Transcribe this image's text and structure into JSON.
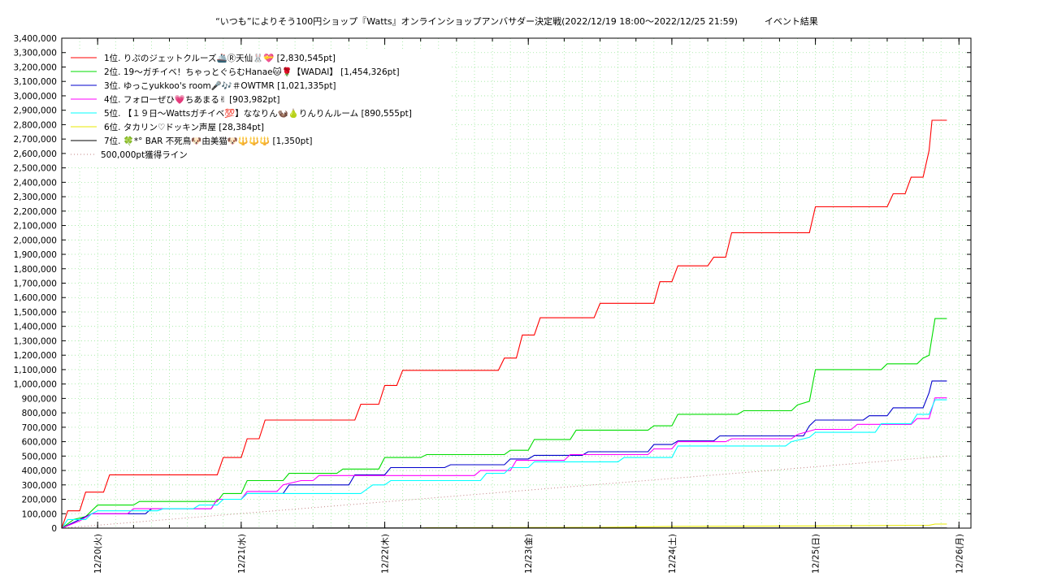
{
  "chart_data": {
    "type": "line",
    "title": "“いつも”によりそう100円ショップ『Watts』オンラインショップアンバサダー決定戦(2022/12/19 18:00～2022/12/25 21:59)　　　イベント結果",
    "ylim": [
      0,
      3400000
    ],
    "yticks": [
      "0",
      "100,000",
      "200,000",
      "300,000",
      "400,000",
      "500,000",
      "600,000",
      "700,000",
      "800,000",
      "900,000",
      "1,000,000",
      "1,100,000",
      "1,200,000",
      "1,300,000",
      "1,400,000",
      "1,500,000",
      "1,600,000",
      "1,700,000",
      "1,800,000",
      "1,900,000",
      "2,000,000",
      "2,100,000",
      "2,200,000",
      "2,300,000",
      "2,400,000",
      "2,500,000",
      "2,600,000",
      "2,700,000",
      "2,800,000",
      "2,900,000",
      "3,000,000",
      "3,100,000",
      "3,200,000",
      "3,300,000",
      "3,400,000"
    ],
    "xlim": [
      "2022/12/19 18:00",
      "2022/12/26 02:00"
    ],
    "xticks": [
      {
        "t": "2022/12/20 00:00",
        "label": "12/20(火)"
      },
      {
        "t": "2022/12/21 00:00",
        "label": "12/21(水)"
      },
      {
        "t": "2022/12/22 00:00",
        "label": "12/22(木)"
      },
      {
        "t": "2022/12/23 00:00",
        "label": "12/23(金)"
      },
      {
        "t": "2022/12/24 00:00",
        "label": "12/24(土)"
      },
      {
        "t": "2022/12/25 00:00",
        "label": "12/25(日)"
      },
      {
        "t": "2022/12/26 00:00",
        "label": "12/26(月)"
      }
    ],
    "grid": true,
    "legend_position": "top-left",
    "series": [
      {
        "name": "1位. りぷのジェットクルーズ🚢Ⓡ天仙🐰💝 [2,830,545pt]",
        "color": "#ff0000",
        "points": [
          [
            "2022/12/19 18:00",
            0
          ],
          [
            "2022/12/19 19:00",
            120000
          ],
          [
            "2022/12/19 21:00",
            120000
          ],
          [
            "2022/12/19 22:00",
            250000
          ],
          [
            "2022/12/20 01:00",
            250000
          ],
          [
            "2022/12/20 02:00",
            370000
          ],
          [
            "2022/12/20 20:00",
            370000
          ],
          [
            "2022/12/20 21:00",
            490000
          ],
          [
            "2022/12/21 00:00",
            490000
          ],
          [
            "2022/12/21 01:00",
            620000
          ],
          [
            "2022/12/21 03:00",
            620000
          ],
          [
            "2022/12/21 04:00",
            750000
          ],
          [
            "2022/12/21 19:00",
            750000
          ],
          [
            "2022/12/21 20:00",
            860000
          ],
          [
            "2022/12/21 23:00",
            860000
          ],
          [
            "2022/12/22 00:00",
            990000
          ],
          [
            "2022/12/22 02:00",
            990000
          ],
          [
            "2022/12/22 03:00",
            1095000
          ],
          [
            "2022/12/22 19:00",
            1095000
          ],
          [
            "2022/12/22 20:00",
            1180000
          ],
          [
            "2022/12/22 22:00",
            1180000
          ],
          [
            "2022/12/22 23:00",
            1340000
          ],
          [
            "2022/12/23 01:00",
            1340000
          ],
          [
            "2022/12/23 02:00",
            1460000
          ],
          [
            "2022/12/23 11:00",
            1460000
          ],
          [
            "2022/12/23 12:00",
            1560000
          ],
          [
            "2022/12/23 21:00",
            1560000
          ],
          [
            "2022/12/23 22:00",
            1710000
          ],
          [
            "2022/12/24 00:00",
            1710000
          ],
          [
            "2022/12/24 01:00",
            1820000
          ],
          [
            "2022/12/24 06:00",
            1820000
          ],
          [
            "2022/12/24 07:00",
            1880000
          ],
          [
            "2022/12/24 09:00",
            1880000
          ],
          [
            "2022/12/24 10:00",
            2050000
          ],
          [
            "2022/12/24 23:00",
            2050000
          ],
          [
            "2022/12/25 00:00",
            2230000
          ],
          [
            "2022/12/25 12:00",
            2230000
          ],
          [
            "2022/12/25 13:00",
            2320000
          ],
          [
            "2022/12/25 15:00",
            2320000
          ],
          [
            "2022/12/25 16:00",
            2435000
          ],
          [
            "2022/12/25 18:00",
            2435000
          ],
          [
            "2022/12/25 19:00",
            2620000
          ],
          [
            "2022/12/25 19:30",
            2830545
          ],
          [
            "2022/12/25 21:59",
            2830545
          ]
        ]
      },
      {
        "name": "2位. 19〜ガチイベ！ちゃっとぐらむHanae🐱🌹【WADAI】 [1,454,326pt]",
        "color": "#00dd00",
        "points": [
          [
            "2022/12/19 18:00",
            0
          ],
          [
            "2022/12/19 20:00",
            60000
          ],
          [
            "2022/12/19 22:00",
            80000
          ],
          [
            "2022/12/19 23:00",
            120000
          ],
          [
            "2022/12/20 00:00",
            160000
          ],
          [
            "2022/12/20 06:00",
            160000
          ],
          [
            "2022/12/20 07:00",
            185000
          ],
          [
            "2022/12/20 20:00",
            185000
          ],
          [
            "2022/12/20 21:00",
            240000
          ],
          [
            "2022/12/21 00:00",
            240000
          ],
          [
            "2022/12/21 01:00",
            330000
          ],
          [
            "2022/12/21 07:00",
            330000
          ],
          [
            "2022/12/21 08:00",
            380000
          ],
          [
            "2022/12/21 16:00",
            380000
          ],
          [
            "2022/12/21 17:00",
            410000
          ],
          [
            "2022/12/21 23:00",
            410000
          ],
          [
            "2022/12/22 00:00",
            490000
          ],
          [
            "2022/12/22 06:00",
            490000
          ],
          [
            "2022/12/22 07:00",
            510000
          ],
          [
            "2022/12/22 20:00",
            510000
          ],
          [
            "2022/12/22 21:00",
            540000
          ],
          [
            "2022/12/23 00:00",
            540000
          ],
          [
            "2022/12/23 01:00",
            615000
          ],
          [
            "2022/12/23 07:00",
            615000
          ],
          [
            "2022/12/23 08:00",
            680000
          ],
          [
            "2022/12/23 20:00",
            680000
          ],
          [
            "2022/12/23 21:00",
            710000
          ],
          [
            "2022/12/24 00:00",
            710000
          ],
          [
            "2022/12/24 01:00",
            790000
          ],
          [
            "2022/12/24 11:00",
            790000
          ],
          [
            "2022/12/24 12:00",
            815000
          ],
          [
            "2022/12/24 20:00",
            815000
          ],
          [
            "2022/12/24 21:00",
            855000
          ],
          [
            "2022/12/24 23:00",
            880000
          ],
          [
            "2022/12/25 00:00",
            1100000
          ],
          [
            "2022/12/25 11:00",
            1100000
          ],
          [
            "2022/12/25 12:00",
            1140000
          ],
          [
            "2022/12/25 17:00",
            1140000
          ],
          [
            "2022/12/25 18:00",
            1180000
          ],
          [
            "2022/12/25 19:00",
            1200000
          ],
          [
            "2022/12/25 20:00",
            1454326
          ],
          [
            "2022/12/25 21:59",
            1454326
          ]
        ]
      },
      {
        "name": "3位. ゆっこyukkoo's room🎤🎶＃OWTMR [1,021,335pt]",
        "color": "#0000cc",
        "points": [
          [
            "2022/12/19 18:00",
            0
          ],
          [
            "2022/12/19 21:00",
            60000
          ],
          [
            "2022/12/19 23:00",
            100000
          ],
          [
            "2022/12/20 08:00",
            100000
          ],
          [
            "2022/12/20 09:00",
            135000
          ],
          [
            "2022/12/20 19:00",
            135000
          ],
          [
            "2022/12/20 20:00",
            200000
          ],
          [
            "2022/12/21 00:00",
            200000
          ],
          [
            "2022/12/21 01:00",
            240000
          ],
          [
            "2022/12/21 07:00",
            240000
          ],
          [
            "2022/12/21 08:00",
            300000
          ],
          [
            "2022/12/21 18:00",
            300000
          ],
          [
            "2022/12/21 19:00",
            370000
          ],
          [
            "2022/12/22 00:00",
            370000
          ],
          [
            "2022/12/22 01:00",
            420000
          ],
          [
            "2022/12/22 10:00",
            420000
          ],
          [
            "2022/12/22 11:00",
            440000
          ],
          [
            "2022/12/22 20:00",
            440000
          ],
          [
            "2022/12/22 21:00",
            480000
          ],
          [
            "2022/12/23 00:00",
            480000
          ],
          [
            "2022/12/23 01:00",
            505000
          ],
          [
            "2022/12/23 09:00",
            505000
          ],
          [
            "2022/12/23 10:00",
            530000
          ],
          [
            "2022/12/23 20:00",
            530000
          ],
          [
            "2022/12/23 21:00",
            580000
          ],
          [
            "2022/12/24 00:00",
            580000
          ],
          [
            "2022/12/24 01:00",
            605000
          ],
          [
            "2022/12/24 07:00",
            605000
          ],
          [
            "2022/12/24 08:00",
            640000
          ],
          [
            "2022/12/24 22:00",
            640000
          ],
          [
            "2022/12/24 23:00",
            710000
          ],
          [
            "2022/12/25 00:00",
            750000
          ],
          [
            "2022/12/25 08:00",
            750000
          ],
          [
            "2022/12/25 09:00",
            780000
          ],
          [
            "2022/12/25 12:00",
            780000
          ],
          [
            "2022/12/25 13:00",
            835000
          ],
          [
            "2022/12/25 18:00",
            835000
          ],
          [
            "2022/12/25 19:00",
            940000
          ],
          [
            "2022/12/25 19:30",
            1021335
          ],
          [
            "2022/12/25 21:59",
            1021335
          ]
        ]
      },
      {
        "name": "4位. フォローぜひ💗ちあまる✌ [903,982pt]",
        "color": "#ff00ff",
        "points": [
          [
            "2022/12/19 18:00",
            0
          ],
          [
            "2022/12/19 21:00",
            50000
          ],
          [
            "2022/12/19 23:00",
            100000
          ],
          [
            "2022/12/20 05:00",
            100000
          ],
          [
            "2022/12/20 06:00",
            135000
          ],
          [
            "2022/12/20 19:00",
            135000
          ],
          [
            "2022/12/20 20:00",
            200000
          ],
          [
            "2022/12/21 00:00",
            200000
          ],
          [
            "2022/12/21 01:00",
            255000
          ],
          [
            "2022/12/21 06:00",
            255000
          ],
          [
            "2022/12/21 07:00",
            300000
          ],
          [
            "2022/12/21 10:00",
            330000
          ],
          [
            "2022/12/21 12:00",
            330000
          ],
          [
            "2022/12/21 13:00",
            365000
          ],
          [
            "2022/12/21 18:00",
            365000
          ],
          [
            "2022/12/21 19:00",
            365000
          ],
          [
            "2022/12/22 06:00",
            365000
          ],
          [
            "2022/12/22 07:00",
            365000
          ],
          [
            "2022/12/22 15:00",
            365000
          ],
          [
            "2022/12/22 16:00",
            400000
          ],
          [
            "2022/12/22 21:00",
            400000
          ],
          [
            "2022/12/22 22:00",
            470000
          ],
          [
            "2022/12/23 06:00",
            470000
          ],
          [
            "2022/12/23 07:00",
            510000
          ],
          [
            "2022/12/23 20:00",
            510000
          ],
          [
            "2022/12/23 21:00",
            550000
          ],
          [
            "2022/12/24 00:00",
            550000
          ],
          [
            "2022/12/24 01:00",
            600000
          ],
          [
            "2022/12/24 09:00",
            600000
          ],
          [
            "2022/12/24 10:00",
            620000
          ],
          [
            "2022/12/24 20:00",
            620000
          ],
          [
            "2022/12/24 21:00",
            650000
          ],
          [
            "2022/12/25 00:00",
            685000
          ],
          [
            "2022/12/25 06:00",
            685000
          ],
          [
            "2022/12/25 07:00",
            720000
          ],
          [
            "2022/12/25 16:00",
            720000
          ],
          [
            "2022/12/25 17:00",
            760000
          ],
          [
            "2022/12/25 19:00",
            760000
          ],
          [
            "2022/12/25 20:00",
            903982
          ],
          [
            "2022/12/25 21:59",
            903982
          ]
        ]
      },
      {
        "name": "5位. 【１９日〜Wattsガチイベ💯】ななりん🦦🍐りんりんルーム [890,555pt]",
        "color": "#00ffff",
        "points": [
          [
            "2022/12/19 18:00",
            0
          ],
          [
            "2022/12/19 19:00",
            60000
          ],
          [
            "2022/12/19 22:00",
            60000
          ],
          [
            "2022/12/19 23:00",
            100000
          ],
          [
            "2022/12/20 00:00",
            120000
          ],
          [
            "2022/12/20 10:00",
            120000
          ],
          [
            "2022/12/20 11:00",
            135000
          ],
          [
            "2022/12/20 16:00",
            135000
          ],
          [
            "2022/12/20 17:00",
            160000
          ],
          [
            "2022/12/20 20:00",
            160000
          ],
          [
            "2022/12/20 21:00",
            200000
          ],
          [
            "2022/12/21 00:00",
            200000
          ],
          [
            "2022/12/21 01:00",
            240000
          ],
          [
            "2022/12/21 20:00",
            240000
          ],
          [
            "2022/12/21 21:00",
            270000
          ],
          [
            "2022/12/21 22:00",
            300000
          ],
          [
            "2022/12/22 00:00",
            300000
          ],
          [
            "2022/12/22 01:00",
            330000
          ],
          [
            "2022/12/22 16:00",
            330000
          ],
          [
            "2022/12/22 17:00",
            380000
          ],
          [
            "2022/12/22 20:00",
            380000
          ],
          [
            "2022/12/22 21:00",
            420000
          ],
          [
            "2022/12/23 00:00",
            420000
          ],
          [
            "2022/12/23 01:00",
            460000
          ],
          [
            "2022/12/23 15:00",
            460000
          ],
          [
            "2022/12/23 16:00",
            490000
          ],
          [
            "2022/12/24 00:00",
            490000
          ],
          [
            "2022/12/24 01:00",
            570000
          ],
          [
            "2022/12/24 19:00",
            570000
          ],
          [
            "2022/12/24 20:00",
            600000
          ],
          [
            "2022/12/24 23:00",
            630000
          ],
          [
            "2022/12/25 00:00",
            665000
          ],
          [
            "2022/12/25 10:00",
            665000
          ],
          [
            "2022/12/25 11:00",
            725000
          ],
          [
            "2022/12/25 16:00",
            725000
          ],
          [
            "2022/12/25 17:00",
            790000
          ],
          [
            "2022/12/25 19:00",
            790000
          ],
          [
            "2022/12/25 20:00",
            890555
          ],
          [
            "2022/12/25 21:59",
            890555
          ]
        ]
      },
      {
        "name": "6位. タカリン♡ドッキン声屋 [28,384pt]",
        "color": "#e8e800",
        "points": [
          [
            "2022/12/19 18:00",
            0
          ],
          [
            "2022/12/22 06:00",
            0
          ],
          [
            "2022/12/22 07:00",
            2000
          ],
          [
            "2022/12/23 12:00",
            5000
          ],
          [
            "2022/12/24 00:00",
            12000
          ],
          [
            "2022/12/25 00:00",
            15000
          ],
          [
            "2022/12/25 19:00",
            20000
          ],
          [
            "2022/12/25 20:00",
            28384
          ],
          [
            "2022/12/25 21:59",
            28384
          ]
        ]
      },
      {
        "name": "7位. 🍀*°  BAR 不死鳥🐶由美猫🐶🔱🔱🔱 [1,350pt]",
        "color": "#000000",
        "points": [
          [
            "2022/12/19 18:00",
            0
          ],
          [
            "2022/12/21 12:00",
            0
          ],
          [
            "2022/12/21 13:00",
            1350
          ],
          [
            "2022/12/25 21:59",
            1350
          ]
        ]
      },
      {
        "name": "500,000pt獲得ライン",
        "color": "#c08080",
        "dotted": true,
        "points": [
          [
            "2022/12/19 18:00",
            0
          ],
          [
            "2022/12/25 21:59",
            500000
          ]
        ]
      }
    ]
  }
}
